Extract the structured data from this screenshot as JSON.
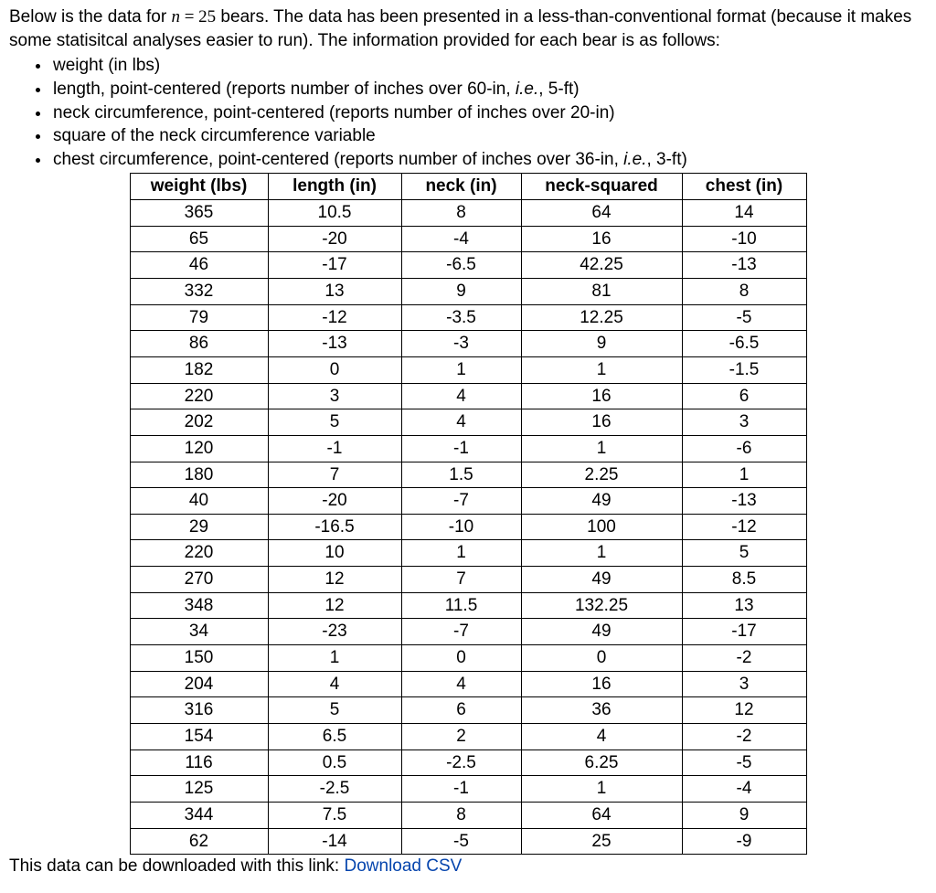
{
  "intro": {
    "part1": "Below is the data for ",
    "n_var": "n",
    "eq_sign": " = ",
    "n_value": "25",
    "part2": " bears.  The data has been presented in a less-than-conventional format (because it makes some statisitcal analyses easier to run).  The information provided for each bear is as follows:"
  },
  "bullets": [
    {
      "text": "weight (in lbs)"
    },
    {
      "pre": "length, point-centered (reports number of inches over 60-in, ",
      "ital": "i.e.",
      "post": ", 5-ft)"
    },
    {
      "text": "neck circumference, point-centered (reports number of inches over 20-in)"
    },
    {
      "text": "square of the neck circumference variable"
    },
    {
      "pre": "chest circumference, point-centered (reports number of inches over 36-in, ",
      "ital": "i.e.",
      "post": ", 3-ft)"
    }
  ],
  "table": {
    "columns": [
      "weight (lbs)",
      "length (in)",
      "neck (in)",
      "neck-squared",
      "chest (in)"
    ],
    "rows": [
      [
        "365",
        "10.5",
        "8",
        "64",
        "14"
      ],
      [
        "65",
        "-20",
        "-4",
        "16",
        "-10"
      ],
      [
        "46",
        "-17",
        "-6.5",
        "42.25",
        "-13"
      ],
      [
        "332",
        "13",
        "9",
        "81",
        "8"
      ],
      [
        "79",
        "-12",
        "-3.5",
        "12.25",
        "-5"
      ],
      [
        "86",
        "-13",
        "-3",
        "9",
        "-6.5"
      ],
      [
        "182",
        "0",
        "1",
        "1",
        "-1.5"
      ],
      [
        "220",
        "3",
        "4",
        "16",
        "6"
      ],
      [
        "202",
        "5",
        "4",
        "16",
        "3"
      ],
      [
        "120",
        "-1",
        "-1",
        "1",
        "-6"
      ],
      [
        "180",
        "7",
        "1.5",
        "2.25",
        "1"
      ],
      [
        "40",
        "-20",
        "-7",
        "49",
        "-13"
      ],
      [
        "29",
        "-16.5",
        "-10",
        "100",
        "-12"
      ],
      [
        "220",
        "10",
        "1",
        "1",
        "5"
      ],
      [
        "270",
        "12",
        "7",
        "49",
        "8.5"
      ],
      [
        "348",
        "12",
        "11.5",
        "132.25",
        "13"
      ],
      [
        "34",
        "-23",
        "-7",
        "49",
        "-17"
      ],
      [
        "150",
        "1",
        "0",
        "0",
        "-2"
      ],
      [
        "204",
        "4",
        "4",
        "16",
        "3"
      ],
      [
        "316",
        "5",
        "6",
        "36",
        "12"
      ],
      [
        "154",
        "6.5",
        "2",
        "4",
        "-2"
      ],
      [
        "116",
        "0.5",
        "-2.5",
        "6.25",
        "-5"
      ],
      [
        "125",
        "-2.5",
        "-1",
        "1",
        "-4"
      ],
      [
        "344",
        "7.5",
        "8",
        "64",
        "9"
      ],
      [
        "62",
        "-14",
        "-5",
        "25",
        "-9"
      ]
    ]
  },
  "footer": {
    "text": "This data can be downloaded with this link:  ",
    "link_text": "Download CSV"
  }
}
